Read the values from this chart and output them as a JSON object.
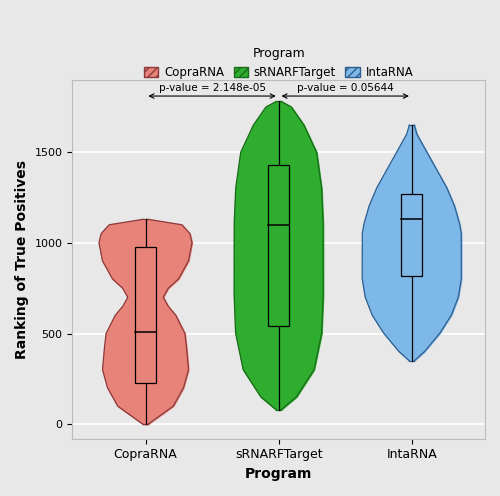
{
  "programs": [
    "CopraRNA",
    "sRNARFTarget",
    "IntaRNA"
  ],
  "colors": [
    "#E8837A",
    "#2EAD2E",
    "#7EB8E8"
  ],
  "edge_colors": [
    "#8B3A3A",
    "#1A6B1A",
    "#2E5E8E"
  ],
  "xlabel": "Program",
  "ylabel": "Ranking of True Positives",
  "legend_title": "Program",
  "bg_color": "#E8E8E8",
  "grid_color": "white",
  "pvalue1": "p-value = 2.148e-05",
  "pvalue2": "p-value = 0.05644",
  "copraRNA_q1": 230,
  "copraRNA_median": 510,
  "copraRNA_q3": 980,
  "copraRNA_whisker_low": 0,
  "copraRNA_whisker_high": 1130,
  "sRNARFTarget_q1": 540,
  "sRNARFTarget_median": 1100,
  "sRNARFTarget_q3": 1430,
  "sRNARFTarget_whisker_low": 80,
  "sRNARFTarget_whisker_high": 1780,
  "intaRNA_q1": 820,
  "intaRNA_median": 1130,
  "intaRNA_q3": 1270,
  "intaRNA_whisker_low": 350,
  "intaRNA_whisker_high": 1650,
  "ylim_min": -80,
  "ylim_max": 1900,
  "yticks": [
    0,
    500,
    1000,
    1500
  ],
  "figsize": [
    5.0,
    4.96
  ],
  "dpi": 100
}
